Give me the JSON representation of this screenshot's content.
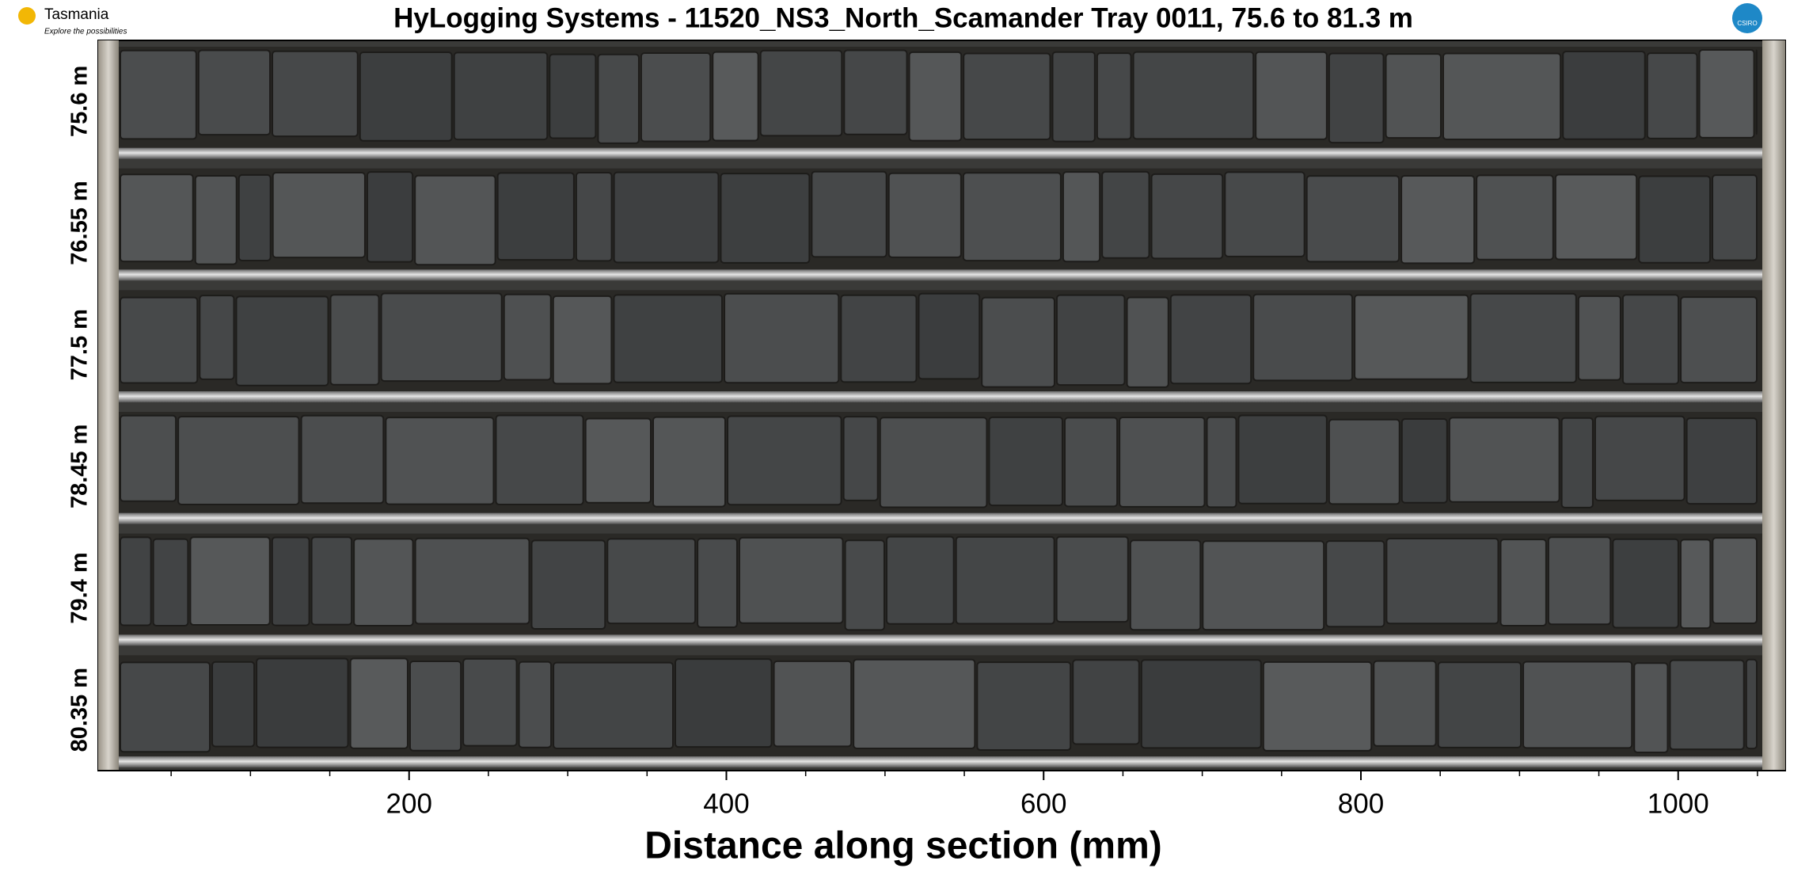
{
  "header": {
    "title": "HyLogging Systems  -  11520_NS3_North_Scamander  Tray 0011,  75.6 to 81.3 m",
    "logo_left": "Tasmania",
    "logo_tagline": "Explore the possibilities",
    "logo_right": "CSIRO"
  },
  "rows": [
    "75.6 m",
    "76.55 m",
    "77.5 m",
    "78.45 m",
    "79.4 m",
    "80.35 m"
  ],
  "axis": {
    "label": "Distance along section (mm)",
    "xlim": [
      4,
      1068
    ],
    "xticks": [
      200,
      400,
      600,
      800,
      1000
    ],
    "xminorticks": [
      50,
      100,
      150,
      250,
      300,
      350,
      450,
      500,
      550,
      650,
      700,
      750,
      850,
      900,
      950,
      1050
    ]
  }
}
